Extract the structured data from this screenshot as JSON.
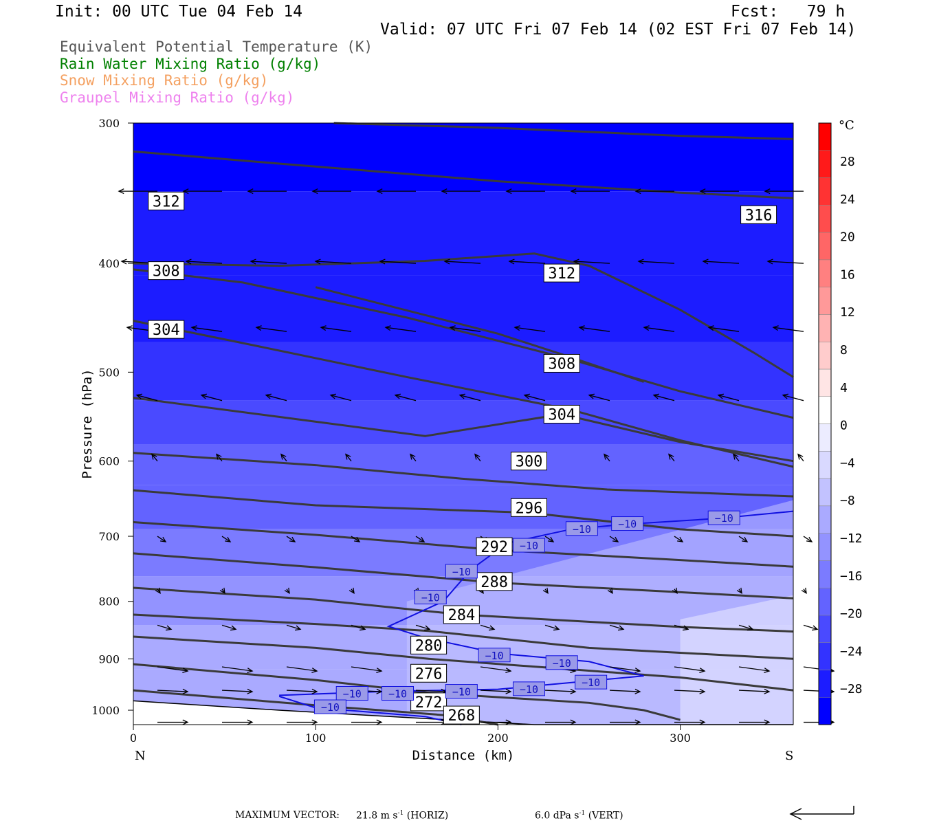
{
  "header": {
    "init": "Init: 00 UTC Tue 04 Feb 14",
    "fcst": "Fcst:   79 h",
    "valid": "Valid: 07 UTC Fri 07 Feb 14 (02 EST Fri 07 Feb 14)"
  },
  "legend": [
    {
      "label": "Equivalent Potential Temperature (K)",
      "color": "#555555"
    },
    {
      "label": "Rain Water Mixing Ratio (g/kg)",
      "color": "#008000"
    },
    {
      "label": "Snow Mixing Ratio (g/kg)",
      "color": "#f4a060"
    },
    {
      "label": "Graupel Mixing Ratio (g/kg)",
      "color": "#ee82ee"
    }
  ],
  "chart_data": {
    "type": "cross-section",
    "xlabel": "Distance (km)",
    "ylabel": "Pressure (hPa)",
    "xlim": [
      0,
      362
    ],
    "ylim": [
      1030,
      300
    ],
    "y_scale": "log",
    "x_ticks": [
      0,
      100,
      200,
      300
    ],
    "y_ticks": [
      300,
      400,
      500,
      600,
      700,
      800,
      900,
      1000
    ],
    "end_labels": {
      "left": "N",
      "right": "S"
    },
    "theta_e_contours": [
      {
        "label": "312",
        "points": [
          [
            0,
            318
          ],
          [
            80,
            326
          ],
          [
            200,
            338
          ],
          [
            300,
            346
          ],
          [
            362,
            350
          ]
        ],
        "label_at": [
          18,
          352
        ]
      },
      {
        "label": "316",
        "points": [
          [
            110,
            300
          ],
          [
            200,
            303
          ],
          [
            300,
            308
          ],
          [
            362,
            310
          ]
        ],
        "label_at": [
          343,
          362
        ]
      },
      {
        "label": "312",
        "points": [
          [
            0,
            400
          ],
          [
            80,
            402
          ],
          [
            160,
            398
          ],
          [
            220,
            392
          ],
          [
            250,
            402
          ],
          [
            300,
            440
          ],
          [
            340,
            480
          ],
          [
            362,
            505
          ]
        ],
        "label_at": [
          235,
          408
        ]
      },
      {
        "label": "308",
        "points": [
          [
            0,
            405
          ],
          [
            60,
            416
          ],
          [
            150,
            447
          ],
          [
            240,
            487
          ],
          [
            300,
            520
          ],
          [
            362,
            549
          ]
        ],
        "label_at": [
          18,
          406
        ]
      },
      {
        "label": "304",
        "points": [
          [
            0,
            450
          ],
          [
            60,
            471
          ],
          [
            150,
            505
          ],
          [
            240,
            540
          ],
          [
            300,
            575
          ],
          [
            362,
            607
          ]
        ],
        "label_at": [
          18,
          458
        ]
      },
      {
        "label": "308",
        "points": [
          [
            100,
            420
          ],
          [
            200,
            462
          ],
          [
            235,
            482
          ],
          [
            280,
            510
          ]
        ],
        "label_at": [
          235,
          491
        ]
      },
      {
        "label": "304",
        "points": [
          [
            0,
            527
          ],
          [
            80,
            548
          ],
          [
            160,
            570
          ],
          [
            235,
            545
          ],
          [
            300,
            577
          ],
          [
            362,
            600
          ]
        ],
        "label_at": [
          235,
          545
        ]
      },
      {
        "label": "300",
        "points": [
          [
            0,
            590
          ],
          [
            100,
            605
          ],
          [
            180,
            622
          ],
          [
            260,
            636
          ],
          [
            362,
            645
          ]
        ],
        "label_at": [
          217,
          600
        ]
      },
      {
        "label": "296",
        "points": [
          [
            0,
            637
          ],
          [
            100,
            657
          ],
          [
            217,
            667
          ],
          [
            300,
            690
          ],
          [
            362,
            700
          ]
        ],
        "label_at": [
          217,
          660
        ]
      },
      {
        "label": "292",
        "points": [
          [
            0,
            680
          ],
          [
            100,
            698
          ],
          [
            200,
            720
          ],
          [
            300,
            735
          ],
          [
            362,
            745
          ]
        ],
        "label_at": [
          198,
          715
        ]
      },
      {
        "label": "288",
        "points": [
          [
            0,
            725
          ],
          [
            100,
            746
          ],
          [
            200,
            770
          ],
          [
            300,
            785
          ],
          [
            362,
            795
          ]
        ],
        "label_at": [
          198,
          768
        ]
      },
      {
        "label": "284",
        "points": [
          [
            0,
            778
          ],
          [
            100,
            797
          ],
          [
            180,
            822
          ],
          [
            300,
            843
          ],
          [
            362,
            851
          ]
        ],
        "label_at": [
          180,
          822
        ]
      },
      {
        "label": "280",
        "points": [
          [
            0,
            822
          ],
          [
            100,
            838
          ],
          [
            162,
            850
          ],
          [
            250,
            880
          ],
          [
            362,
            900
          ]
        ],
        "label_at": [
          162,
          875
        ]
      },
      {
        "label": "276",
        "points": [
          [
            0,
            860
          ],
          [
            100,
            880
          ],
          [
            162,
            900
          ],
          [
            300,
            935
          ],
          [
            362,
            960
          ]
        ],
        "label_at": [
          162,
          927
        ]
      },
      {
        "label": "272",
        "points": [
          [
            0,
            910
          ],
          [
            100,
            940
          ],
          [
            162,
            965
          ],
          [
            250,
            985
          ],
          [
            280,
            1000
          ],
          [
            300,
            1020
          ]
        ],
        "label_at": [
          162,
          983
        ]
      },
      {
        "label": "268",
        "points": [
          [
            0,
            960
          ],
          [
            100,
            990
          ],
          [
            170,
            1010
          ],
          [
            200,
            1030
          ]
        ],
        "label_at": [
          180,
          1010
        ]
      }
    ],
    "temperature_contours": [
      {
        "label": "-10",
        "points": [
          [
            362,
            665
          ],
          [
            320,
            675
          ],
          [
            270,
            683
          ],
          [
            240,
            690
          ],
          [
            205,
            710
          ],
          [
            185,
            750
          ],
          [
            170,
            800
          ],
          [
            140,
            842
          ],
          [
            160,
            862
          ],
          [
            200,
            890
          ],
          [
            250,
            905
          ],
          [
            280,
            932
          ],
          [
            240,
            945
          ],
          [
            200,
            958
          ],
          [
            140,
            962
          ],
          [
            80,
            970
          ]
        ]
      },
      {
        "label": "-10",
        "points": [
          [
            80,
            972
          ],
          [
            100,
            995
          ],
          [
            160,
            1013
          ],
          [
            180,
            1030
          ]
        ]
      }
    ],
    "temperature_labels": [
      {
        "text": "−10",
        "at": [
          324,
          674
        ]
      },
      {
        "text": "−10",
        "at": [
          271,
          682
        ]
      },
      {
        "text": "−10",
        "at": [
          246,
          689
        ]
      },
      {
        "text": "−10",
        "at": [
          217,
          713
        ]
      },
      {
        "text": "−10",
        "at": [
          180,
          752
        ]
      },
      {
        "text": "−10",
        "at": [
          163,
          793
        ]
      },
      {
        "text": "−10",
        "at": [
          198,
          893
        ]
      },
      {
        "text": "−10",
        "at": [
          235,
          907
        ]
      },
      {
        "text": "−10",
        "at": [
          251,
          944
        ]
      },
      {
        "text": "−10",
        "at": [
          217,
          957
        ]
      },
      {
        "text": "−10",
        "at": [
          180,
          962
        ]
      },
      {
        "text": "−10",
        "at": [
          145,
          966
        ]
      },
      {
        "text": "−10",
        "at": [
          120,
          966
        ]
      },
      {
        "text": "−10",
        "at": [
          108,
          993
        ]
      }
    ],
    "shading_bands": [
      {
        "p": [
          300,
          345
        ],
        "temp": -30
      },
      {
        "p": [
          345,
          410
        ],
        "temp": -28
      },
      {
        "p": [
          410,
          470
        ],
        "temp": -26
      },
      {
        "p": [
          470,
          530
        ],
        "temp": -24
      },
      {
        "p": [
          530,
          580
        ],
        "temp": -22
      },
      {
        "p": [
          580,
          630
        ],
        "temp": -20
      },
      {
        "p": [
          630,
          690
        ],
        "temp": -18
      },
      {
        "p": [
          690,
          760
        ],
        "temp": -16
      },
      {
        "p": [
          760,
          840
        ],
        "temp": -14
      },
      {
        "p": [
          840,
          920
        ],
        "temp": -12
      },
      {
        "p": [
          920,
          1030
        ],
        "temp": -10
      }
    ],
    "colorbar": {
      "unit": "°C",
      "labels": [
        "28",
        "24",
        "20",
        "16",
        "12",
        "8",
        "4",
        "0",
        "−4",
        "−8",
        "−12",
        "−16",
        "−20",
        "−24",
        "−28"
      ],
      "colors": [
        "#0000ff",
        "#1c1cff",
        "#3333ff",
        "#4a4aff",
        "#6363ff",
        "#7b7bff",
        "#9393ff",
        "#aaaaff",
        "#c2c2ff",
        "#d9d9ff",
        "#ececff",
        "#ffffff",
        "#ffe5e5",
        "#ffcccc",
        "#ffb3b3",
        "#ff9999",
        "#ff8080",
        "#ff6666",
        "#ff4d4d",
        "#ff3333",
        "#ff1a1a",
        "#ff0000"
      ]
    },
    "terrain": [
      [
        0,
        981
      ],
      [
        80,
        1000
      ],
      [
        150,
        1015
      ],
      [
        220,
        1030
      ],
      [
        362,
        1030
      ]
    ],
    "wind_vectors": {
      "max_horiz": "21.8 m s",
      "max_vert": "6.0 dPa s",
      "rows": [
        {
          "p": 345,
          "dx": -28,
          "dy": 0
        },
        {
          "p": 400,
          "dx": -26,
          "dy": -3
        },
        {
          "p": 460,
          "dx": -22,
          "dy": -6
        },
        {
          "p": 530,
          "dx": -15,
          "dy": -8
        },
        {
          "p": 600,
          "dx": -4,
          "dy": -10
        },
        {
          "p": 700,
          "dx": 6,
          "dy": 8
        },
        {
          "p": 780,
          "dx": 2,
          "dy": 6
        },
        {
          "p": 840,
          "dx": 10,
          "dy": 6
        },
        {
          "p": 915,
          "dx": 22,
          "dy": 6
        },
        {
          "p": 960,
          "dx": 22,
          "dy": 2
        },
        {
          "p": 1025,
          "dx": 22,
          "dy": 0
        }
      ]
    }
  },
  "footer": {
    "max_vector_label": "MAXIMUM VECTOR:",
    "horiz": "21.8 m s",
    "horiz_sup": "-1",
    "horiz_tag": "(HORIZ)",
    "vert": "6.0 dPa s",
    "vert_sup": "-1",
    "vert_tag": "(VERT)"
  }
}
